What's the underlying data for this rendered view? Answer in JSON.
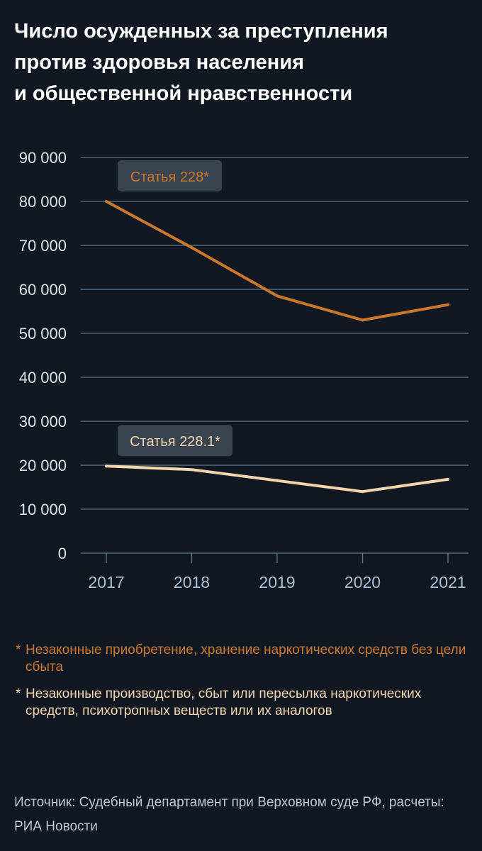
{
  "title_lines": [
    "Число осужденных за преступления",
    "против здоровья населения",
    "и общественной нравственности"
  ],
  "chart_data": {
    "type": "line",
    "x": [
      "2017",
      "2018",
      "2019",
      "2020",
      "2021"
    ],
    "ylim": [
      0,
      90000
    ],
    "yticks": [
      0,
      10000,
      20000,
      30000,
      40000,
      50000,
      60000,
      70000,
      80000,
      90000
    ],
    "ytick_labels": [
      "0",
      "10 000",
      "20 000",
      "30 000",
      "40 000",
      "50 000",
      "60 000",
      "70 000",
      "80 000",
      "90 000"
    ],
    "grid": true,
    "series": [
      {
        "name": "Статья 228*",
        "color": "#c9782c",
        "values": [
          80000,
          69500,
          58500,
          53000,
          56500
        ]
      },
      {
        "name": "Статья 228.1*",
        "color": "#f3d6b0",
        "values": [
          19800,
          19000,
          16500,
          14000,
          16800
        ]
      }
    ]
  },
  "notes": [
    {
      "star": "*",
      "text": "Незаконные приобретение, хранение наркотических средств без цели сбыта",
      "color": "#c9782c"
    },
    {
      "star": "*",
      "text": "Незаконные производство, сбыт  или пересылка наркотических  средств, психотропных веществ или их аналогов",
      "color": "#f3d6b0"
    }
  ],
  "source": "Источник: Судебный департамент при Верховном суде РФ, расчеты: РИА Новости",
  "colors": {
    "background": "#111821",
    "grid": "#5f7a90",
    "tick_text": "#dfe3e8",
    "x_tick_text": "#a9c0d6",
    "label_box": "#3a4451"
  }
}
